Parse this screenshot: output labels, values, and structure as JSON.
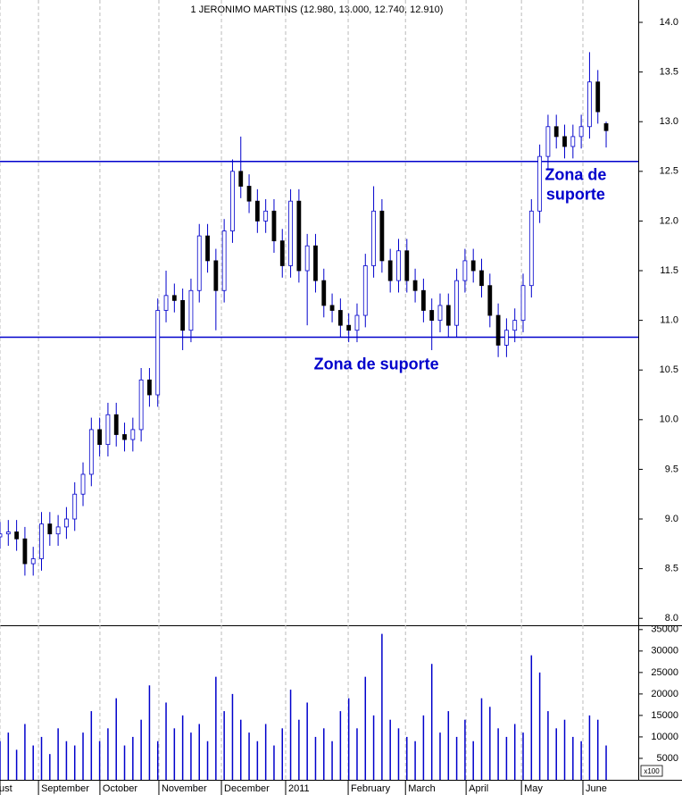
{
  "chart_data": {
    "type": "candlestick",
    "title": "1 JERONIMO MARTINS (12.980, 13.000, 12.740, 12.910)",
    "x": [
      0,
      3,
      6,
      9,
      12,
      15,
      18,
      21,
      24,
      27,
      30,
      33,
      36,
      39,
      42,
      45,
      48,
      51,
      54,
      57,
      60,
      63,
      66,
      69,
      72,
      75,
      78,
      81,
      84,
      87,
      90,
      93,
      96,
      99,
      102,
      105,
      108,
      111,
      114,
      117,
      120,
      123,
      126,
      129,
      132,
      135,
      138,
      141,
      144,
      147,
      150,
      153,
      156,
      159,
      162,
      165,
      168,
      171,
      174,
      177,
      180,
      183,
      186,
      189,
      192,
      195,
      198,
      201,
      204,
      207,
      210,
      213,
      216,
      219
    ],
    "open": [
      8.82,
      8.85,
      8.87,
      8.8,
      8.55,
      8.6,
      8.95,
      8.85,
      8.92,
      9.0,
      9.25,
      9.45,
      9.9,
      9.75,
      10.05,
      9.85,
      9.8,
      9.9,
      10.4,
      10.25,
      11.1,
      11.25,
      11.2,
      10.9,
      11.3,
      11.85,
      11.6,
      11.3,
      11.9,
      12.5,
      12.35,
      12.2,
      12.0,
      12.1,
      11.8,
      11.55,
      12.2,
      11.5,
      11.75,
      11.4,
      11.15,
      11.1,
      10.95,
      10.9,
      11.05,
      11.55,
      12.1,
      11.6,
      11.4,
      11.7,
      11.4,
      11.3,
      11.1,
      11.0,
      11.15,
      10.95,
      11.4,
      11.6,
      11.5,
      11.35,
      11.05,
      10.75,
      10.9,
      11.0,
      11.35,
      12.1,
      12.65,
      12.95,
      12.85,
      12.75,
      12.85,
      12.95,
      13.4,
      12.98
    ],
    "high": [
      8.97,
      8.99,
      8.99,
      8.92,
      8.72,
      9.07,
      9.07,
      9.04,
      9.12,
      9.37,
      9.57,
      10.02,
      10.02,
      10.17,
      10.17,
      9.97,
      10.02,
      10.52,
      10.52,
      11.22,
      11.5,
      11.37,
      11.32,
      11.42,
      11.97,
      11.97,
      11.72,
      12.02,
      12.62,
      12.85,
      12.47,
      12.32,
      12.22,
      12.22,
      11.92,
      12.32,
      12.32,
      11.87,
      11.87,
      11.52,
      11.27,
      11.22,
      11.07,
      11.17,
      11.67,
      12.35,
      12.22,
      11.72,
      11.82,
      11.82,
      11.52,
      11.42,
      11.22,
      11.27,
      11.27,
      11.52,
      11.72,
      11.72,
      11.62,
      11.47,
      11.17,
      11.02,
      11.12,
      11.47,
      12.22,
      12.77,
      13.07,
      13.07,
      12.97,
      12.97,
      13.07,
      13.7,
      13.52,
      13.0
    ],
    "low": [
      8.7,
      8.73,
      8.68,
      8.43,
      8.43,
      8.48,
      8.73,
      8.73,
      8.8,
      8.88,
      9.13,
      9.33,
      9.63,
      9.63,
      9.73,
      9.68,
      9.68,
      9.78,
      10.13,
      10.13,
      10.98,
      11.08,
      10.7,
      10.78,
      11.18,
      11.48,
      10.9,
      11.18,
      11.78,
      12.23,
      12.08,
      11.88,
      11.88,
      11.68,
      11.43,
      11.43,
      11.38,
      10.95,
      11.28,
      11.03,
      10.98,
      10.83,
      10.78,
      10.78,
      10.93,
      11.43,
      11.48,
      11.28,
      11.28,
      11.28,
      11.18,
      10.98,
      10.7,
      10.88,
      10.83,
      10.83,
      11.28,
      11.38,
      11.23,
      10.93,
      10.63,
      10.63,
      10.78,
      10.88,
      11.23,
      11.98,
      12.53,
      12.73,
      12.63,
      12.63,
      12.73,
      12.83,
      12.98,
      12.74
    ],
    "close": [
      8.85,
      8.87,
      8.8,
      8.55,
      8.6,
      8.95,
      8.85,
      8.92,
      9.0,
      9.25,
      9.45,
      9.9,
      9.75,
      10.05,
      9.85,
      9.8,
      9.9,
      10.4,
      10.25,
      11.1,
      11.25,
      11.2,
      10.9,
      11.3,
      11.85,
      11.6,
      11.3,
      11.9,
      12.5,
      12.35,
      12.2,
      12.0,
      12.1,
      11.8,
      11.55,
      12.2,
      11.5,
      11.75,
      11.4,
      11.15,
      11.1,
      10.95,
      10.9,
      11.05,
      11.55,
      12.1,
      11.6,
      11.4,
      11.7,
      11.4,
      11.3,
      11.1,
      11.0,
      11.15,
      10.95,
      11.4,
      11.6,
      11.5,
      11.35,
      11.05,
      10.75,
      10.9,
      11.0,
      11.35,
      12.1,
      12.65,
      12.95,
      12.85,
      12.75,
      12.85,
      12.95,
      13.4,
      13.1,
      12.91
    ],
    "volume": [
      9000,
      11000,
      7000,
      13000,
      8000,
      10000,
      6000,
      12000,
      9000,
      8000,
      11000,
      16000,
      9000,
      12000,
      19000,
      8000,
      10000,
      14000,
      22000,
      9000,
      18000,
      12000,
      15000,
      11000,
      13000,
      9000,
      24000,
      16000,
      20000,
      14000,
      11000,
      9000,
      13000,
      8000,
      12000,
      21000,
      14000,
      18000,
      10000,
      12000,
      9000,
      16000,
      19000,
      12000,
      24000,
      15000,
      34000,
      14000,
      12000,
      10000,
      9000,
      15000,
      27000,
      11000,
      16000,
      10000,
      14000,
      9000,
      19000,
      17000,
      12000,
      10000,
      13000,
      11000,
      29000,
      25000,
      16000,
      12000,
      14000,
      10000,
      9000,
      15000,
      14000,
      8000
    ],
    "ylim": [
      7.93,
      14.225
    ],
    "yticks": [
      {
        "value": 8,
        "label": "8.0"
      },
      8.5,
      {
        "value": 9,
        "label": "9.0"
      },
      9.5,
      {
        "value": 10,
        "label": "10.0"
      },
      10.5,
      {
        "value": 11,
        "label": "11.0"
      },
      11.5,
      {
        "value": 12,
        "label": "12.0"
      },
      12.5,
      {
        "value": 13,
        "label": "13.0"
      },
      13.5,
      {
        "value": 14,
        "label": "14.0"
      }
    ],
    "volume_ylim": [
      0,
      36000
    ],
    "volume_yticks": [
      5000,
      10000,
      15000,
      20000,
      25000,
      30000,
      35000
    ],
    "volume_unit_label": "x100",
    "xlim": [
      0,
      230.6
    ],
    "xticks": [
      {
        "value": 0,
        "label": "ust"
      },
      {
        "value": 13.9,
        "label": "September"
      },
      {
        "value": 36.1,
        "label": "October"
      },
      {
        "value": 57.4,
        "label": "November"
      },
      {
        "value": 80,
        "label": "December"
      },
      {
        "value": 103.2,
        "label": "2011"
      },
      {
        "value": 125.8,
        "label": "February"
      },
      {
        "value": 146.5,
        "label": "March"
      },
      {
        "value": 168.4,
        "label": "April"
      },
      {
        "value": 188.4,
        "label": "May"
      },
      {
        "value": 210.6,
        "label": "June"
      }
    ],
    "hlines": [
      12.6,
      10.83
    ],
    "annotations": [
      {
        "text": "Zona de suporte",
        "x": 136,
        "y": 10.55
      },
      {
        "lines": [
          "Zona de",
          "suporte"
        ],
        "x": 208,
        "y": 12.5
      }
    ],
    "up_color": "#ffffff",
    "down_color": "#000000",
    "outline_color": "#0000cc",
    "volume_color": "#0000cc",
    "line_color": "#0000cc"
  }
}
